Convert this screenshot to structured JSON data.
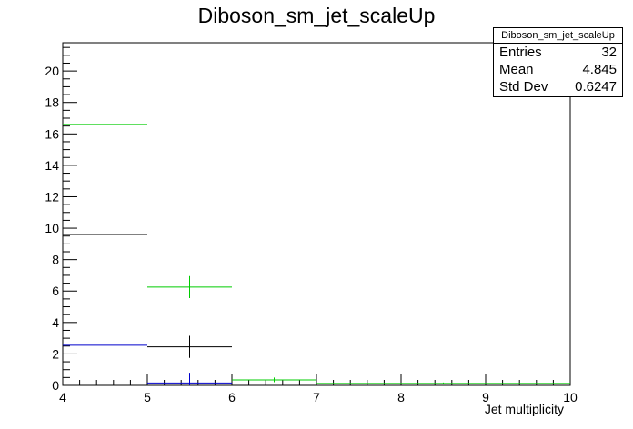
{
  "chart_data": {
    "type": "scatter",
    "title": "Diboson_sm_jet_scaleUp",
    "xlabel": "Jet multiplicity",
    "ylabel": "",
    "xlim": [
      4,
      10
    ],
    "ylim": [
      0,
      21.8
    ],
    "x_ticks": [
      4,
      5,
      6,
      7,
      8,
      9,
      10
    ],
    "y_ticks": [
      0,
      2,
      4,
      6,
      8,
      10,
      12,
      14,
      16,
      18,
      20
    ],
    "stats": {
      "title": "Diboson_sm_jet_scaleUp",
      "rows": [
        {
          "label": "Entries",
          "value": "32"
        },
        {
          "label": "Mean",
          "value": "4.845"
        },
        {
          "label": "Std Dev",
          "value": "0.6247"
        }
      ]
    },
    "series": [
      {
        "color": "#00cc00",
        "points": [
          {
            "xlo": 4,
            "xhi": 5,
            "y": 16.6,
            "err": 1.25
          },
          {
            "xlo": 5,
            "xhi": 6,
            "y": 6.25,
            "err": 0.7
          },
          {
            "xlo": 6,
            "xhi": 7,
            "y": 0.35,
            "err": 0.15
          },
          {
            "xlo": 7,
            "xhi": 10,
            "y": 0.12,
            "err": 0.06
          }
        ]
      },
      {
        "color": "#000000",
        "points": [
          {
            "xlo": 4,
            "xhi": 5,
            "y": 9.6,
            "err": 1.3
          },
          {
            "xlo": 5,
            "xhi": 6,
            "y": 2.45,
            "err": 0.7
          }
        ]
      },
      {
        "color": "#0000cc",
        "points": [
          {
            "xlo": 4,
            "xhi": 5,
            "y": 2.55,
            "err": 1.25
          },
          {
            "xlo": 5,
            "xhi": 6,
            "y": 0.15,
            "err": 0.65
          }
        ]
      }
    ]
  }
}
